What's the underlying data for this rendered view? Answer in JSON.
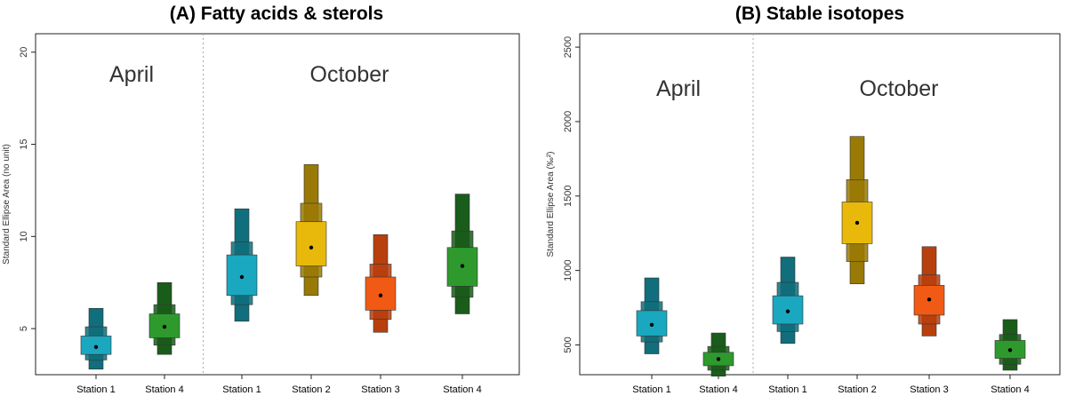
{
  "chart_data": [
    {
      "type": "boxplot",
      "title": "(A) Fatty acids & sterols",
      "ylabel": "Standard Ellipse Area (no unit)",
      "ylim": [
        2.5,
        21
      ],
      "yticks": [
        5,
        10,
        15,
        20
      ],
      "divider_after_index": 1,
      "groups": [
        {
          "label": "April",
          "from": 0,
          "to": 1
        },
        {
          "label": "October",
          "from": 2,
          "to": 5
        }
      ],
      "categories": [
        "Station 1",
        "Station 4",
        "Station 1",
        "Station 2",
        "Station 3",
        "Station 4"
      ],
      "series": [
        {
          "category": "Station 1",
          "month": "April",
          "color": "#19a8bf",
          "dark": "#116e7c",
          "mode": 4.0,
          "ci50": [
            3.6,
            4.6
          ],
          "ci75": [
            3.3,
            5.1
          ],
          "ci95": [
            2.8,
            6.1
          ]
        },
        {
          "category": "Station 4",
          "month": "April",
          "color": "#2e9a2e",
          "dark": "#1a5c1a",
          "mode": 5.1,
          "ci50": [
            4.5,
            5.8
          ],
          "ci75": [
            4.1,
            6.3
          ],
          "ci95": [
            3.6,
            7.5
          ]
        },
        {
          "category": "Station 1",
          "month": "October",
          "color": "#19a8bf",
          "dark": "#116e7c",
          "mode": 7.8,
          "ci50": [
            6.8,
            9.0
          ],
          "ci75": [
            6.3,
            9.7
          ],
          "ci95": [
            5.4,
            11.5
          ]
        },
        {
          "category": "Station 2",
          "month": "October",
          "color": "#e8b90a",
          "dark": "#9a7a06",
          "mode": 9.4,
          "ci50": [
            8.4,
            10.8
          ],
          "ci75": [
            7.8,
            11.8
          ],
          "ci95": [
            6.8,
            13.9
          ]
        },
        {
          "category": "Station 3",
          "month": "October",
          "color": "#f05a14",
          "dark": "#b8400e",
          "mode": 6.8,
          "ci50": [
            6.0,
            7.8
          ],
          "ci75": [
            5.5,
            8.5
          ],
          "ci95": [
            4.8,
            10.1
          ]
        },
        {
          "category": "Station 4",
          "month": "October",
          "color": "#2e9a2e",
          "dark": "#1a5c1a",
          "mode": 8.4,
          "ci50": [
            7.3,
            9.4
          ],
          "ci75": [
            6.7,
            10.3
          ],
          "ci95": [
            5.8,
            12.3
          ]
        }
      ]
    },
    {
      "type": "boxplot",
      "title": "(B) Stable isotopes",
      "ylabel": "Standard Ellipse Area (‰²)",
      "ylim": [
        300,
        2590
      ],
      "yticks": [
        500,
        1000,
        1500,
        2000,
        2500
      ],
      "divider_after_index": 1,
      "groups": [
        {
          "label": "April",
          "from": 0,
          "to": 1
        },
        {
          "label": "October",
          "from": 2,
          "to": 5
        }
      ],
      "categories": [
        "Station 1",
        "Station 4",
        "Station 1",
        "Station 2",
        "Station 3",
        "Station 4"
      ],
      "series": [
        {
          "category": "Station 1",
          "month": "April",
          "color": "#19a8bf",
          "dark": "#116e7c",
          "mode": 635,
          "ci50": [
            560,
            730
          ],
          "ci75": [
            520,
            790
          ],
          "ci95": [
            440,
            950
          ]
        },
        {
          "category": "Station 4",
          "month": "April",
          "color": "#2e9a2e",
          "dark": "#1a5c1a",
          "mode": 405,
          "ci50": [
            360,
            450
          ],
          "ci75": [
            330,
            490
          ],
          "ci95": [
            290,
            580
          ]
        },
        {
          "category": "Station 1",
          "month": "October",
          "color": "#19a8bf",
          "dark": "#116e7c",
          "mode": 725,
          "ci50": [
            640,
            830
          ],
          "ci75": [
            590,
            920
          ],
          "ci95": [
            510,
            1090
          ]
        },
        {
          "category": "Station 2",
          "month": "October",
          "color": "#e8b90a",
          "dark": "#9a7a06",
          "mode": 1320,
          "ci50": [
            1180,
            1460
          ],
          "ci75": [
            1060,
            1610
          ],
          "ci95": [
            910,
            1900
          ]
        },
        {
          "category": "Station 3",
          "month": "October",
          "color": "#f05a14",
          "dark": "#b8400e",
          "mode": 805,
          "ci50": [
            700,
            900
          ],
          "ci75": [
            640,
            970
          ],
          "ci95": [
            560,
            1160
          ]
        },
        {
          "category": "Station 4",
          "month": "October",
          "color": "#2e9a2e",
          "dark": "#1a5c1a",
          "mode": 465,
          "ci50": [
            410,
            530
          ],
          "ci75": [
            370,
            570
          ],
          "ci95": [
            330,
            670
          ]
        }
      ]
    }
  ]
}
